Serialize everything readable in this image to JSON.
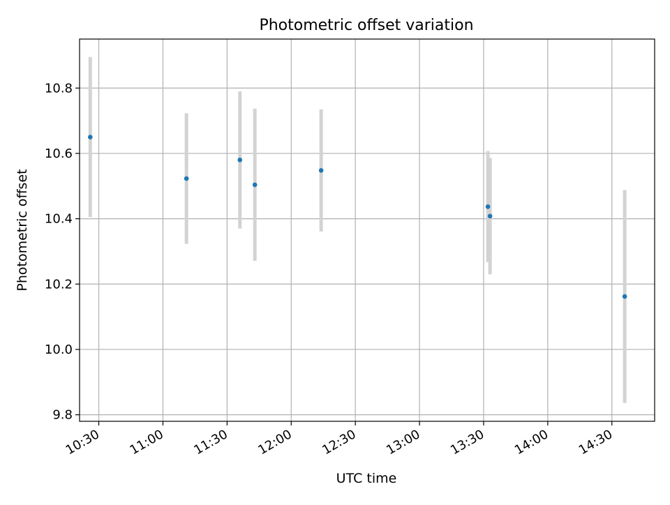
{
  "chart_data": {
    "type": "scatter",
    "title": "Photometric offset variation",
    "xlabel": "UTC time",
    "ylabel": "Photometric offset",
    "x_ticks": [
      "10:30",
      "11:00",
      "11:30",
      "12:00",
      "12:30",
      "13:00",
      "13:30",
      "14:00",
      "14:30"
    ],
    "y_ticks": [
      "9.8",
      "10.0",
      "10.2",
      "10.4",
      "10.6",
      "10.8"
    ],
    "xlim": [
      "10:21",
      "14:50"
    ],
    "ylim": [
      9.78,
      10.95
    ],
    "grid": true,
    "point_color": "#1f77b4",
    "errorbar_color": "#d3d3d3",
    "points": [
      {
        "x": "10:26",
        "y": 10.65,
        "err": 0.245
      },
      {
        "x": "11:11",
        "y": 10.523,
        "err": 0.2
      },
      {
        "x": "11:36",
        "y": 10.58,
        "err": 0.21
      },
      {
        "x": "11:43",
        "y": 10.504,
        "err": 0.233
      },
      {
        "x": "12:14",
        "y": 10.548,
        "err": 0.187
      },
      {
        "x": "13:32",
        "y": 10.437,
        "err": 0.17
      },
      {
        "x": "13:33",
        "y": 10.408,
        "err": 0.178
      },
      {
        "x": "14:36",
        "y": 10.162,
        "err": 0.326
      }
    ]
  }
}
